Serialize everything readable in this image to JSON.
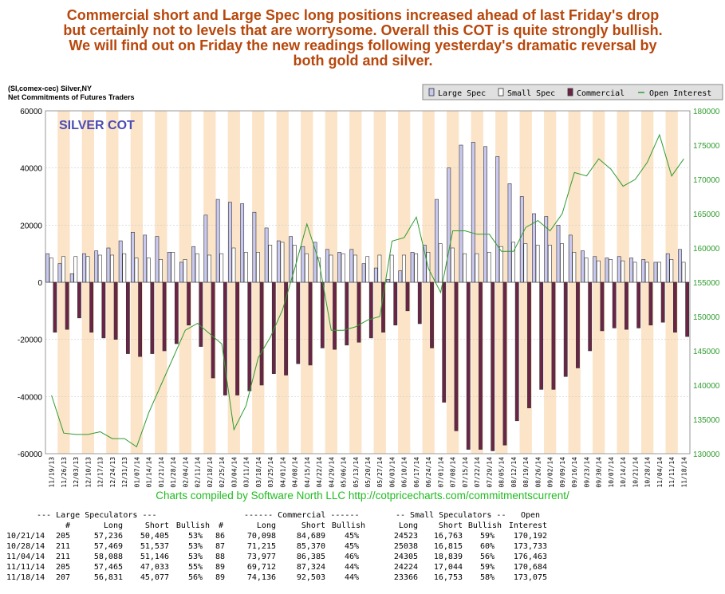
{
  "headline": [
    "Commercial short and Large Spec long positions increased ahead of last Friday's drop",
    "but certainly not to levels that are worrysome. Overall this COT is quite strongly bullish.",
    "We will find out on Friday the new readings following yesterday's dramatic reversal by",
    "both gold and silver."
  ],
  "chart_header": {
    "line1": "(SI,comex-cec) Silver,NY",
    "line2": "Net Commitments of Futures Traders"
  },
  "credit": "Charts compiled by Software North LLC  http://cotpricecharts.com/commitmentscurrent/",
  "colors": {
    "large_spec": "#c8c8f0",
    "small_spec": "#ffffff",
    "commercial": "#6b2446",
    "open_interest": "#2f9b2f",
    "band": "#fbe4c8",
    "title_text": "#4b4bb4",
    "headline": "#b8470b",
    "credit": "#22bb22"
  },
  "chart_data": {
    "type": "bar",
    "title": "SILVER COT",
    "legend": {
      "position": "top-right",
      "entries": [
        "Large Spec",
        "Small Spec",
        "Commercial",
        "Open Interest"
      ]
    },
    "categories": [
      "11/19/13",
      "11/26/13",
      "12/03/13",
      "12/10/13",
      "12/17/13",
      "12/24/13",
      "12/31/13",
      "01/07/14",
      "01/14/14",
      "01/21/14",
      "01/28/14",
      "02/04/14",
      "02/11/14",
      "02/18/14",
      "02/25/14",
      "03/04/14",
      "03/11/14",
      "03/18/14",
      "03/25/14",
      "04/01/14",
      "04/08/14",
      "04/15/14",
      "04/22/14",
      "04/29/14",
      "05/06/14",
      "05/13/14",
      "05/20/14",
      "05/27/14",
      "06/03/14",
      "06/10/14",
      "06/17/14",
      "06/24/14",
      "07/01/14",
      "07/08/14",
      "07/15/14",
      "07/22/14",
      "07/29/14",
      "08/05/14",
      "08/12/14",
      "08/19/14",
      "08/26/14",
      "09/02/14",
      "09/09/14",
      "09/16/14",
      "09/23/14",
      "09/30/14",
      "10/07/14",
      "10/14/14",
      "10/21/14",
      "10/28/14",
      "11/04/14",
      "11/11/14",
      "11/18/14"
    ],
    "axis_labels": [
      "11/19/13",
      "11/26/13",
      "12/03/13",
      "12/10/13",
      "12/17/13",
      "12/24/13",
      "12/31/13",
      "01/07/14",
      "01/14/14",
      "01/21/14",
      "01/28/14",
      "02/04/14",
      "02/11/14",
      "02/18/14",
      "02/25/14",
      "03/04/14",
      "03/11/14",
      "03/18/14",
      "03/25/14",
      "04/01/14",
      "04/08/14",
      "04/15/14",
      "04/22/14",
      "04/29/14",
      "05/06/14",
      "05/13/14",
      "05/20/14",
      "05/27/14",
      "06/03/14",
      "06/10/14",
      "06/17/14",
      "06/24/14",
      "07/01/14",
      "07/08/14",
      "07/15/14",
      "07/22/14",
      "07/29/14",
      "08/05/14",
      "08/12/14",
      "08/19/14",
      "08/26/14",
      "09/02/14",
      "09/09/14",
      "09/16/14",
      "09/23/14",
      "09/30/14",
      "10/07/14",
      "10/14/14",
      "10/21/14",
      "10/28/14",
      "11/04/14",
      "11/11/14",
      "11/18/14"
    ],
    "series": [
      {
        "name": "Large Spec",
        "axis": "left",
        "values": [
          10000,
          6500,
          3000,
          10000,
          11000,
          12000,
          14500,
          17500,
          16500,
          16000,
          10500,
          7000,
          12500,
          23500,
          29000,
          28000,
          27500,
          24500,
          19000,
          14500,
          16000,
          12500,
          14000,
          11500,
          10500,
          11500,
          6500,
          5000,
          1000,
          4000,
          10500,
          13000,
          29000,
          40000,
          48000,
          49000,
          47500,
          44000,
          34500,
          30000,
          24000,
          23000,
          20000,
          16500,
          11000,
          9000,
          8500,
          9000,
          8500,
          8000,
          7000,
          10000,
          11500
        ]
      },
      {
        "name": "Small Spec",
        "axis": "left",
        "values": [
          8500,
          9000,
          9000,
          9000,
          9500,
          9500,
          10000,
          8500,
          8500,
          8000,
          10500,
          8000,
          10000,
          9500,
          10000,
          12000,
          10500,
          10500,
          13000,
          14000,
          13000,
          10000,
          8500,
          9500,
          10000,
          9500,
          9000,
          9500,
          9500,
          9500,
          10000,
          10500,
          13500,
          12000,
          10000,
          10000,
          10500,
          12500,
          14000,
          13500,
          13000,
          13000,
          13500,
          10500,
          8500,
          7500,
          8000,
          7500,
          7000,
          7000,
          7000,
          8000,
          7000
        ]
      },
      {
        "name": "Commercial",
        "axis": "left",
        "values": [
          -17500,
          -16500,
          -12500,
          -17500,
          -19500,
          -20000,
          -25000,
          -26000,
          -25000,
          -24000,
          -21500,
          -15000,
          -22500,
          -33500,
          -39500,
          -39500,
          -38000,
          -36000,
          -32000,
          -32500,
          -28500,
          -29000,
          -23000,
          -23500,
          -22000,
          -21000,
          -19500,
          -17500,
          -15000,
          -10000,
          -14500,
          -23000,
          -42000,
          -52000,
          -58500,
          -58500,
          -59000,
          -57000,
          -48500,
          -44000,
          -37500,
          -37500,
          -33000,
          -30000,
          -24000,
          -17000,
          -16000,
          -16500,
          -16000,
          -15000,
          -14000,
          -17500,
          -19000
        ]
      },
      {
        "name": "Open Interest",
        "axis": "right",
        "values": [
          138500,
          133000,
          132800,
          132800,
          133200,
          132200,
          132200,
          131000,
          136000,
          140000,
          144000,
          148000,
          149000,
          147500,
          146000,
          133500,
          137000,
          144000,
          147000,
          151000,
          157000,
          163500,
          158000,
          148000,
          148000,
          148500,
          149500,
          150000,
          161000,
          161500,
          164500,
          157000,
          153500,
          162500,
          162500,
          162000,
          162000,
          159500,
          159500,
          163000,
          164000,
          162500,
          165000,
          171000,
          170500,
          173000,
          171500,
          169000,
          170000,
          172500,
          176500,
          170500,
          173000
        ]
      }
    ],
    "y_left": {
      "min": -60000,
      "max": 60000,
      "ticks": [
        60000,
        40000,
        20000,
        0,
        -20000,
        -40000,
        -60000
      ],
      "tick_labels": [
        "60000",
        "40000",
        "20000",
        "0",
        "-20000",
        "-40000",
        "-60000"
      ]
    },
    "y_right": {
      "min": 130000,
      "max": 180000,
      "ticks": [
        180000,
        175000,
        170000,
        165000,
        160000,
        155000,
        150000,
        145000,
        140000,
        135000,
        130000
      ],
      "tick_labels": [
        "180000",
        "175000",
        "170000",
        "165000",
        "160000",
        "155000",
        "150000",
        "145000",
        "140000",
        "135000",
        "130000"
      ]
    },
    "grid": true
  },
  "table": {
    "group_headers": [
      "--- Large Speculators ---",
      "------ Commercial ------",
      "-- Small Speculators --",
      "Open"
    ],
    "columns": [
      "#",
      "Long",
      "Short",
      "Bullish",
      "#",
      "Long",
      "Short",
      "Bullish",
      "Long",
      "Short",
      "Bullish",
      "Interest"
    ],
    "rows": [
      [
        "10/21/14",
        "205",
        "57,236",
        "50,405",
        "53%",
        "86",
        "70,098",
        "84,689",
        "45%",
        "24523",
        "16,763",
        "59%",
        "170,192"
      ],
      [
        "10/28/14",
        "211",
        "57,469",
        "51,537",
        "53%",
        "87",
        "71,215",
        "85,370",
        "45%",
        "25038",
        "16,815",
        "60%",
        "173,733"
      ],
      [
        "11/04/14",
        "211",
        "58,088",
        "51,146",
        "53%",
        "88",
        "73,977",
        "86,385",
        "46%",
        "24305",
        "18,839",
        "56%",
        "176,463"
      ],
      [
        "11/11/14",
        "205",
        "57,465",
        "47,033",
        "55%",
        "89",
        "69,712",
        "87,324",
        "44%",
        "24224",
        "17,044",
        "59%",
        "170,684"
      ],
      [
        "11/18/14",
        "207",
        "56,831",
        "45,077",
        "56%",
        "89",
        "74,136",
        "92,503",
        "44%",
        "23366",
        "16,753",
        "58%",
        "173,075"
      ]
    ]
  }
}
